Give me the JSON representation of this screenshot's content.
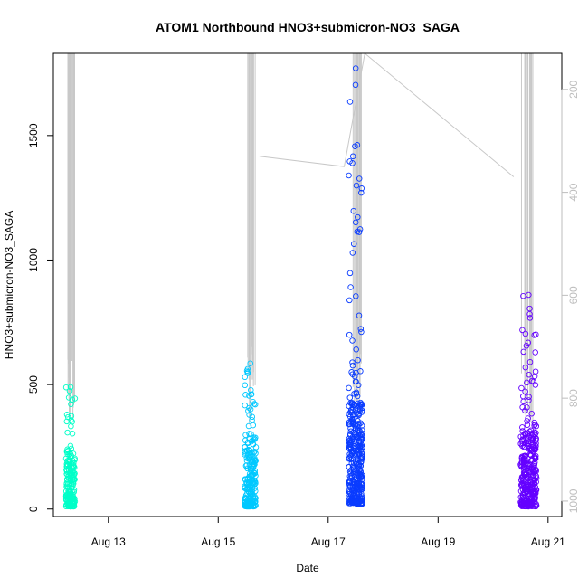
{
  "chart_data": {
    "type": "scatter",
    "title": "ATOM1 Northbound HNO3+submicron-NO3_SAGA",
    "xlabel": "Date",
    "ylabel": "HNO3+submicron-NO3_SAGA",
    "x_axis": {
      "type": "date",
      "range": [
        "2016-08-12T00:00",
        "2016-08-21T06:00"
      ],
      "ticks": [
        {
          "value": "2016-08-13",
          "label": "Aug 13"
        },
        {
          "value": "2016-08-15",
          "label": "Aug 15"
        },
        {
          "value": "2016-08-17",
          "label": "Aug 17"
        },
        {
          "value": "2016-08-19",
          "label": "Aug 19"
        },
        {
          "value": "2016-08-21",
          "label": "Aug 21"
        }
      ]
    },
    "y_axis": {
      "range": [
        -30,
        1830
      ],
      "ticks": [
        0,
        500,
        1000,
        1500
      ],
      "tick_labels": [
        "0",
        "500",
        "1000",
        "1500"
      ]
    },
    "y2_axis": {
      "range": [
        1030,
        130
      ],
      "reversed": true,
      "ticks": [
        200,
        400,
        600,
        800,
        1000
      ],
      "tick_labels": [
        "200",
        "400",
        "600",
        "800",
        "1000"
      ],
      "color": "#bebebe"
    },
    "grid": false,
    "legend": "none",
    "colors": {
      "marker_scale": [
        "#00ffc8",
        "#00c8ff",
        "#0a3cff",
        "#6400ff"
      ],
      "secondary_line": "#c8c8c8",
      "axis": "#000000"
    },
    "series": [
      {
        "marker": "open-circle",
        "clusters": [
          {
            "x_center": "2016-08-12T07:30",
            "x_spread_hours": 4,
            "bulk_range": [
              10,
              200
            ],
            "max": 490,
            "count": 180,
            "color": "#00ffc8"
          },
          {
            "x_center": "2016-08-15T14:00",
            "x_spread_hours": 5,
            "bulk_range": [
              10,
              260
            ],
            "max": 585,
            "count": 220,
            "color": "#00c8ff"
          },
          {
            "x_center": "2016-08-17T12:00",
            "x_spread_hours": 6,
            "bulk_range": [
              20,
              420
            ],
            "max": 1770,
            "count": 380,
            "color": "#0a3cff"
          },
          {
            "x_center": "2016-08-20T15:30",
            "x_spread_hours": 7,
            "bulk_range": [
              10,
              300
            ],
            "max": 860,
            "count": 320,
            "color": "#6400ff"
          }
        ]
      },
      {
        "axis": "y2",
        "style": "line",
        "color": "#c8c8c8",
        "x": [
          "2016-08-15T18:00",
          "2016-08-17T07:00",
          "2016-08-17T16:00",
          "2016-08-20T09:00"
        ],
        "y": [
          330,
          350,
          130,
          370
        ]
      }
    ]
  }
}
